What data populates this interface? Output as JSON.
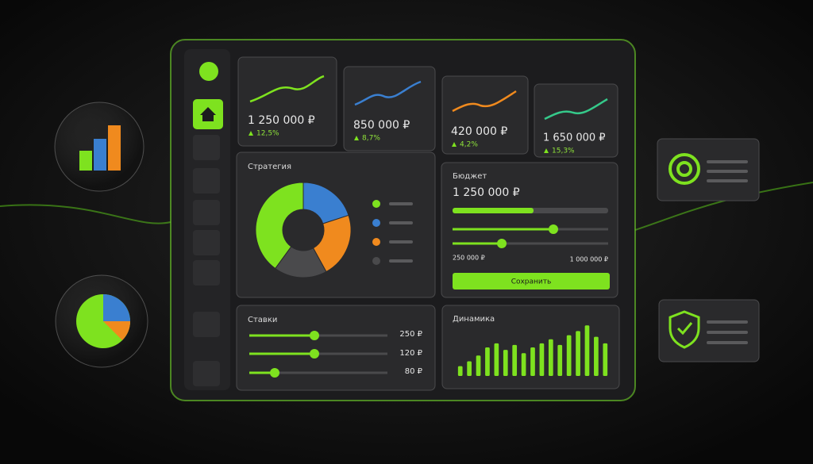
{
  "kpis": [
    {
      "value": "1 250 000 ₽",
      "change": "12,5%"
    },
    {
      "value": "850 000 ₽",
      "change": "8,7%"
    },
    {
      "value": "420 000 ₽",
      "change": "4,2%"
    },
    {
      "value": "1 650 000 ₽",
      "change": "15,3%"
    }
  ],
  "strategy": {
    "title": "Стратегия",
    "chart_data": {
      "type": "pie",
      "series": [
        {
          "color": "#7ee21f",
          "value": 40
        },
        {
          "color": "#3a7fd0",
          "value": 20
        },
        {
          "color": "#f08a1e",
          "value": 22
        },
        {
          "color": "#4a4a4c",
          "value": 18
        }
      ]
    }
  },
  "budget": {
    "title": "Бюджет",
    "value": "1 250 000 ₽",
    "min": "250 000 ₽",
    "max": "1 000 000 ₽",
    "button": "Сохранить"
  },
  "rates": {
    "title": "Ставки",
    "rows": [
      "250 ₽",
      "120 ₽",
      "80 ₽"
    ]
  },
  "dynamics": {
    "title": "Динамика",
    "chart_data": {
      "type": "bar",
      "color": "#7ee21f",
      "values": [
        12,
        18,
        25,
        35,
        40,
        32,
        38,
        28,
        35,
        40,
        45,
        38,
        50,
        55,
        62,
        48,
        40
      ],
      "ylim": [
        0,
        70
      ]
    }
  }
}
